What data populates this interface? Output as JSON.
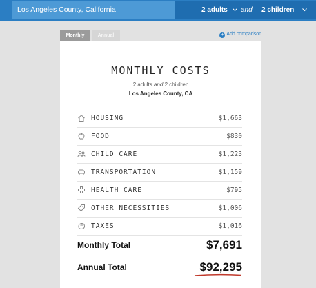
{
  "search": {
    "value": "Los Angeles County, California"
  },
  "household": {
    "adults": "2 adults",
    "and": "and",
    "children": "2 children"
  },
  "tabs": [
    {
      "label": "Monthly",
      "active": true
    },
    {
      "label": "Annual",
      "active": false
    }
  ],
  "add_comparison": "Add comparison",
  "card": {
    "title": "MONTHLY COSTS",
    "subtitle": {
      "adults": "2 adults",
      "and": "and",
      "children": "2 children"
    },
    "location": "Los Angeles County, CA"
  },
  "costs": [
    {
      "icon": "house-icon",
      "label": "HOUSING",
      "value": "$1,663"
    },
    {
      "icon": "apple-icon",
      "label": "FOOD",
      "value": "$830"
    },
    {
      "icon": "people-icon",
      "label": "CHILD CARE",
      "value": "$1,223"
    },
    {
      "icon": "car-icon",
      "label": "TRANSPORTATION",
      "value": "$1,159"
    },
    {
      "icon": "medical-cross-icon",
      "label": "HEALTH CARE",
      "value": "$795"
    },
    {
      "icon": "tag-icon",
      "label": "OTHER NECESSITIES",
      "value": "$1,006"
    },
    {
      "icon": "hand-icon",
      "label": "TAXES",
      "value": "$1,016"
    }
  ],
  "totals": {
    "monthly_label": "Monthly Total",
    "monthly_value": "$7,691",
    "annual_label": "Annual Total",
    "annual_value": "$92,295"
  },
  "colors": {
    "topbar": "#2b7ec3",
    "search_bg": "#4d9ad6",
    "selector_bg": "#1f6db0",
    "accent": "#2b7ec3",
    "underline": "#c0392b"
  }
}
